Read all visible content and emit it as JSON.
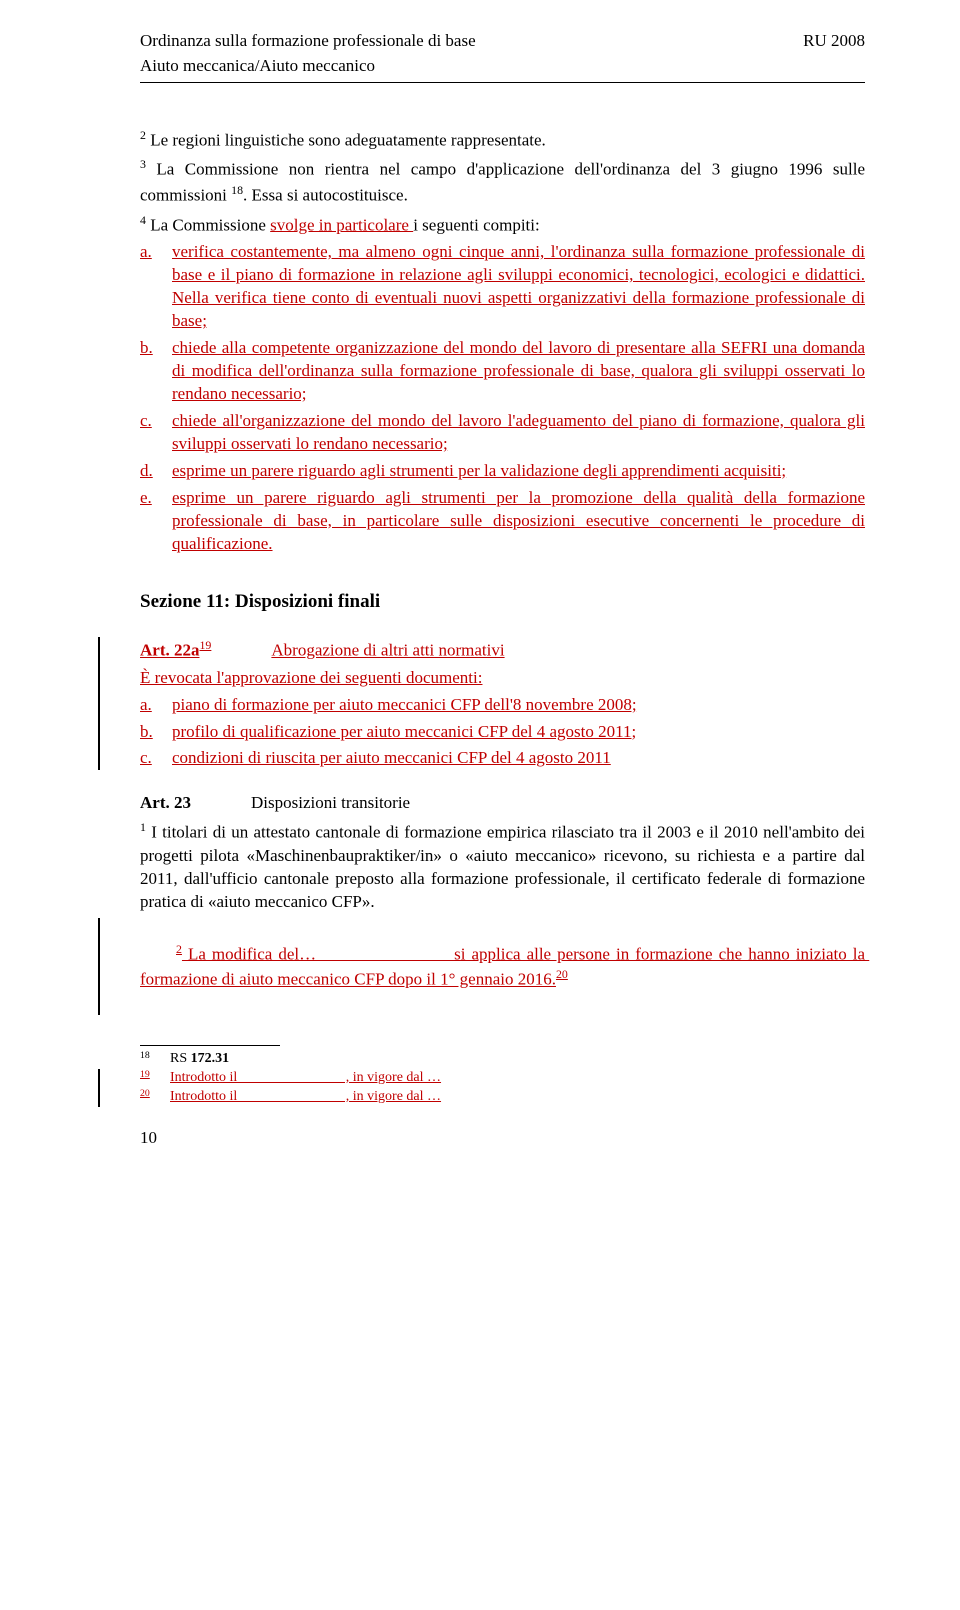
{
  "header": {
    "left_line1": "Ordinanza sulla formazione professionale di base",
    "left_line2": "Aiuto meccanica/Aiuto meccanico",
    "right": "RU 2008"
  },
  "p2": {
    "sup": "2",
    "text": " Le regioni linguistiche sono adeguatamente rappresentate."
  },
  "p3": {
    "sup": "3",
    "t1": " La Commissione non rientra nel campo d'applicazione dell'ordinanza del 3 giugno 1996 sulle commissioni ",
    "sup2": "18",
    "t2": ". Essa si autocostituisce."
  },
  "p4": {
    "sup": "4",
    "t1": " La Commissione ",
    "t2": "svolge in particolare ",
    "t3": "i seguenti compiti:"
  },
  "listA": {
    "a": {
      "lbl": "a.",
      "text": "verifica costantemente, ma almeno ogni cinque anni, l'ordinanza sulla formazione professionale di base e il piano di formazione in relazione agli sviluppi economici, tecnologici, ecologici e didattici. Nella verifica tiene conto di eventuali nuovi aspetti organizzativi della formazione professionale di base;"
    },
    "b": {
      "lbl": "b.",
      "text": "chiede alla competente organizzazione del mondo del lavoro di presentare alla SEFRI una domanda di modifica dell'ordinanza sulla formazione professionale di base, qualora gli sviluppi osservati lo rendano necessario;"
    },
    "c": {
      "lbl": "c.",
      "text": "chiede all'organizzazione del mondo del lavoro l'adeguamento del piano di formazione, qualora gli sviluppi osservati lo rendano necessario;"
    },
    "d": {
      "lbl": "d.",
      "text": "esprime un parere riguardo agli strumenti per la validazione degli apprendimenti acquisiti;"
    },
    "e": {
      "lbl": "e.",
      "text": "esprime un parere riguardo agli strumenti per la promozione della qualità della formazione professionale di base, in particolare sulle disposizioni esecutive concernenti le procedure di qualificazione."
    }
  },
  "sec11": "Sezione 11: Disposizioni finali",
  "art22a": {
    "num": "Art. 22a",
    "sup": "19",
    "title": "Abrogazione di altri atti normativi",
    "intro": "È revocata l'approvazione dei seguenti documenti:",
    "a": {
      "lbl": "a.",
      "text": "piano di formazione per aiuto meccanici CFP dell'8 novembre 2008;"
    },
    "b": {
      "lbl": "b.",
      "text": "profilo di qualificazione per aiuto meccanici CFP del 4 agosto 2011;"
    },
    "c": {
      "lbl": "c.",
      "text": "condizioni di riuscita per aiuto meccanici CFP del 4 agosto 2011"
    }
  },
  "art23": {
    "num": "Art. 23",
    "title": "Disposizioni transitorie",
    "p1": {
      "sup": "1",
      "text": " I titolari di un attestato cantonale di formazione empirica rilasciato tra il 2003 e il 2010 nell'ambito dei progetti pilota «Maschinenbaupraktiker/in» o «aiuto meccanico» ricevono, su richiesta e a partire dal 2011, dall'ufficio cantonale preposto alla formazione professionale, il certificato federale di formazione pratica di «aiuto meccanico CFP»."
    },
    "p2": {
      "sup": "2",
      "t1": " La modifica del…                       si applica alle persone in formazione che hanno iniziato la formazione di aiuto meccanico CFP dopo il 1° gennaio 2016.",
      "sup2": "20"
    }
  },
  "footnotes": {
    "f18": {
      "num": "18",
      "text": "RS ",
      "bold": "172.31"
    },
    "f19": {
      "num": "19",
      "t1": "Introdotto il                               , in vigore dal …"
    },
    "f20": {
      "num": "20",
      "t1": "Introdotto il                               , in vigore dal …"
    }
  },
  "pageNum": "10"
}
